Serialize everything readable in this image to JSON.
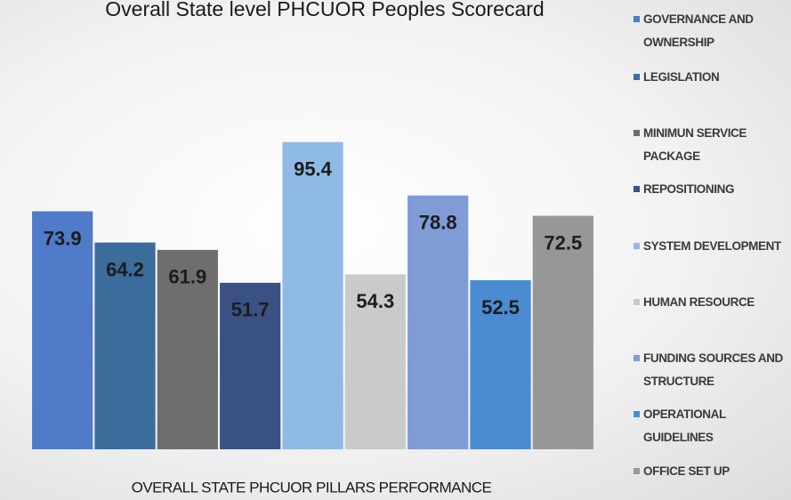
{
  "chart_data": {
    "type": "bar",
    "title": "Overall State level  PHCUOR Peoples Scorecard",
    "x_label": "OVERALL STATE PHCUOR  PILLARS PERFORMANCE",
    "categories": [
      "GOVERNANCE AND OWNERSHIP",
      "LEGISLATION",
      "MINIMUN SERVICE PACKAGE",
      "REPOSITIONING",
      "SYSTEM DEVELOPMENT",
      "HUMAN RESOURCE",
      "FUNDING SOURCES AND STRUCTURE",
      "OPERATIONAL GUIDELINES",
      "OFFICE SET UP"
    ],
    "values": [
      73.9,
      64.2,
      61.9,
      51.7,
      95.4,
      54.3,
      78.8,
      52.5,
      72.5
    ],
    "colors": [
      "#4f7bc8",
      "#3b6c9c",
      "#6e6e6e",
      "#3a5283",
      "#8fbae6",
      "#cacaca",
      "#7f9cd6",
      "#4a8bd2",
      "#979797"
    ],
    "ylim": [
      0,
      100
    ],
    "legend": "right"
  }
}
